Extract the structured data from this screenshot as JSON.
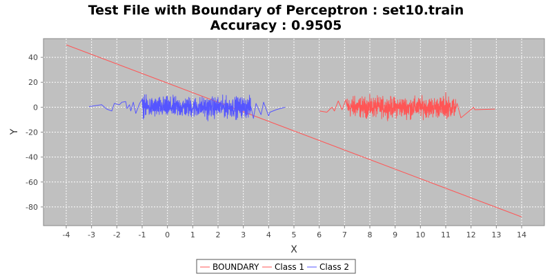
{
  "chart_data": {
    "type": "line",
    "title": "Test File with Boundary of Perceptron : set10.train",
    "subtitle": "Accuracy : 0.9505",
    "xlabel": "X",
    "ylabel": "Y",
    "xlim": [
      -4.9,
      14.9
    ],
    "ylim": [
      -95,
      55
    ],
    "x_ticks": [
      -4,
      -3,
      -2,
      -1,
      0,
      1,
      2,
      3,
      4,
      5,
      6,
      7,
      8,
      9,
      10,
      11,
      12,
      13,
      14
    ],
    "y_ticks": [
      -80,
      -60,
      -40,
      -20,
      0,
      20,
      40
    ],
    "grid": true,
    "legend_position": "bottom",
    "series": [
      {
        "name": "BOUNDARY",
        "color": "#ff5555",
        "kind": "line",
        "points": [
          [
            -4,
            50
          ],
          [
            14,
            -88
          ]
        ]
      },
      {
        "name": "Class 1",
        "color": "#ff5555",
        "kind": "noisy",
        "anchors": [
          [
            6.0,
            -3
          ],
          [
            6.3,
            -4
          ],
          [
            6.5,
            0
          ],
          [
            6.6,
            -3
          ],
          [
            6.75,
            5
          ],
          [
            6.9,
            -2
          ],
          [
            7.05,
            6
          ]
        ],
        "tail": [
          [
            11.45,
            3
          ],
          [
            11.6,
            -8.5
          ],
          [
            12.05,
            -1
          ],
          [
            12.1,
            0
          ],
          [
            12.15,
            -2
          ],
          [
            12.95,
            -1.5
          ]
        ],
        "noise": {
          "x_start": 7.1,
          "x_end": 11.4,
          "amplitude": 6,
          "spikes": [
            [
              11.0,
              12
            ],
            [
              9.6,
              -10
            ],
            [
              7.4,
              9
            ]
          ]
        }
      },
      {
        "name": "Class 2",
        "color": "#5555ff",
        "kind": "noisy",
        "anchors": [
          [
            -3.1,
            0.5
          ],
          [
            -2.6,
            2
          ],
          [
            -2.4,
            -1.5
          ],
          [
            -2.2,
            -3
          ],
          [
            -2.1,
            3
          ],
          [
            -1.9,
            2
          ],
          [
            -1.8,
            4
          ],
          [
            -1.65,
            4.5
          ],
          [
            -1.6,
            -1
          ],
          [
            -1.5,
            2
          ],
          [
            -1.45,
            -3
          ],
          [
            -1.35,
            4
          ],
          [
            -1.25,
            -5
          ],
          [
            -1.1,
            3
          ]
        ],
        "tail": [
          [
            3.4,
            -9
          ],
          [
            3.5,
            3
          ],
          [
            3.7,
            -6
          ],
          [
            3.8,
            4
          ],
          [
            4.0,
            -7
          ],
          [
            4.05,
            -4
          ],
          [
            4.3,
            -2
          ],
          [
            4.65,
            0
          ]
        ],
        "noise": {
          "x_start": -1.0,
          "x_end": 3.3,
          "amplitude": 6,
          "spikes": [
            [
              -0.9,
              10
            ],
            [
              1.6,
              -11
            ],
            [
              2.7,
              -10
            ]
          ]
        }
      }
    ]
  }
}
